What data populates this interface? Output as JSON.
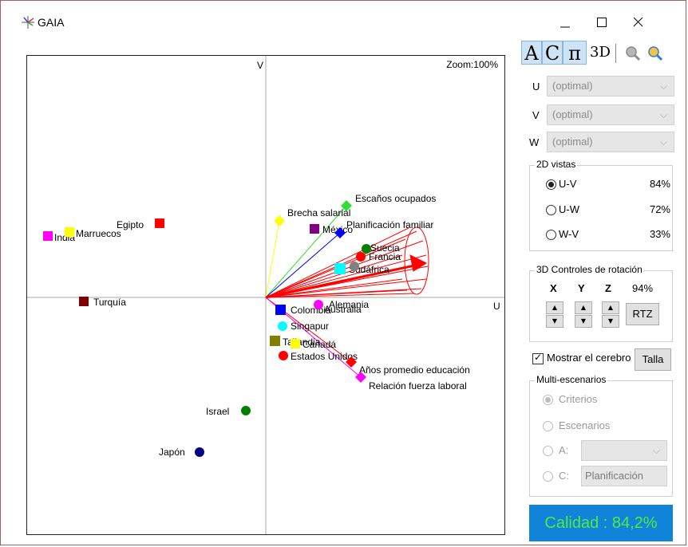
{
  "window": {
    "title": "GAIA",
    "controls": {
      "minimize": "—",
      "maximize": "☐",
      "close": "✕"
    }
  },
  "plot": {
    "zoom_label": "Zoom:100%",
    "v_axis_label": "V",
    "u_axis_label": "U",
    "alternatives": [
      {
        "label": "Egipto",
        "color": "#ff0000",
        "shape": "square"
      },
      {
        "label": "India",
        "color": "#ff00ff",
        "shape": "square"
      },
      {
        "label": "Marruecos",
        "color": "#ffff00",
        "shape": "square"
      },
      {
        "label": "Turquía",
        "color": "#800000",
        "shape": "square"
      },
      {
        "label": "México",
        "color": "#800080",
        "shape": "square"
      },
      {
        "label": "Suecia",
        "color": "#008000",
        "shape": "flower"
      },
      {
        "label": "Francia",
        "color": "#ff0000",
        "shape": "flower"
      },
      {
        "label": "Sudáfrica",
        "color": "#00ffff",
        "shape": "square"
      },
      {
        "label": "Colombia",
        "color": "#0000ff",
        "shape": "square"
      },
      {
        "label": "Australia",
        "color": "#ff00ff",
        "shape": "flower"
      },
      {
        "label": "Alemania",
        "color": "#808080",
        "shape": "flower"
      },
      {
        "label": "Singapur",
        "color": "#00ffff",
        "shape": "flower"
      },
      {
        "label": "Tailandia",
        "color": "#808000",
        "shape": "square"
      },
      {
        "label": "Canadá",
        "color": "#ffff00",
        "shape": "square"
      },
      {
        "label": "Estados Unidos",
        "color": "#ff0000",
        "shape": "flower"
      },
      {
        "label": "Israel",
        "color": "#008000",
        "shape": "flower"
      },
      {
        "label": "Japón",
        "color": "#000080",
        "shape": "flower"
      }
    ],
    "criteria": [
      {
        "label": "Escaños ocupados",
        "color": "#33dd33",
        "marker": "diamond"
      },
      {
        "label": "Brecha salarial",
        "color": "#ffff00",
        "marker": "diamond"
      },
      {
        "label": "Planificación familiar",
        "color": "#0000ff",
        "marker": "diamond"
      },
      {
        "label": "Años promedio educación",
        "color": "#ff0000",
        "marker": "diamond"
      },
      {
        "label": "Relación fuerza laboral",
        "color": "#ff00ff",
        "marker": "diamond"
      }
    ],
    "decision_axis_color": "#ff0000"
  },
  "panel": {
    "toolbar": [
      "A",
      "C",
      "π",
      "3D",
      "zoom-out-icon",
      "zoom-in-icon"
    ],
    "axis_selectors": [
      {
        "axis": "U",
        "value": "(optimal)"
      },
      {
        "axis": "V",
        "value": "(optimal)"
      },
      {
        "axis": "W",
        "value": "(optimal)"
      }
    ],
    "views_2d": {
      "title": "2D vistas",
      "options": [
        {
          "label": "U-V",
          "pct": "84%",
          "checked": true
        },
        {
          "label": "U-W",
          "pct": "72%",
          "checked": false
        },
        {
          "label": "W-V",
          "pct": "33%",
          "checked": false
        }
      ]
    },
    "rotation_3d": {
      "title": "3D Controles de rotación",
      "axes": [
        "X",
        "Y",
        "Z"
      ],
      "pct": "94%",
      "rtz_label": "RTZ"
    },
    "show_brain": {
      "label": "Mostrar el cerebro",
      "checked": true
    },
    "talla_label": "Talla",
    "multi_scenarios": {
      "title": "Multi-escenarios",
      "options": [
        "Criterios",
        "Escenarios",
        "A:",
        "C:"
      ],
      "c_value": "Planificación"
    },
    "quality_label": "Calidad : 84,2%"
  }
}
